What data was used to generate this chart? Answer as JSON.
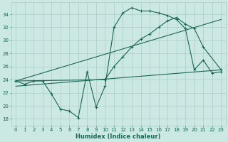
{
  "xlabel": "Humidex (Indice chaleur)",
  "background_color": "#cce8e2",
  "grid_color": "#aacccc",
  "line_color": "#1a6655",
  "xlim": [
    -0.5,
    23.5
  ],
  "ylim": [
    17.0,
    35.8
  ],
  "yticks": [
    18,
    20,
    22,
    24,
    26,
    28,
    30,
    32,
    34
  ],
  "xticks": [
    0,
    1,
    2,
    3,
    4,
    5,
    6,
    7,
    8,
    9,
    10,
    11,
    12,
    13,
    14,
    15,
    16,
    17,
    18,
    19,
    20,
    21,
    22,
    23
  ],
  "line1_x": [
    0,
    1,
    2,
    3,
    4,
    5,
    6,
    7,
    8,
    9,
    10,
    11,
    12,
    13,
    14,
    15,
    16,
    17,
    18,
    19,
    20,
    21,
    22,
    23
  ],
  "line1_y": [
    23.8,
    23.3,
    23.8,
    23.8,
    21.8,
    19.5,
    19.2,
    18.2,
    25.2,
    19.8,
    23.0,
    32.0,
    34.2,
    35.0,
    34.5,
    34.5,
    34.2,
    33.8,
    33.2,
    31.8,
    25.5,
    27.0,
    25.0,
    25.2
  ],
  "line2_x": [
    0,
    10,
    11,
    12,
    13,
    14,
    15,
    16,
    17,
    18,
    19,
    20,
    21,
    23
  ],
  "line2_y": [
    23.8,
    24.0,
    26.0,
    27.5,
    29.0,
    30.2,
    31.0,
    32.0,
    33.0,
    33.5,
    32.5,
    31.8,
    29.0,
    25.5
  ],
  "line3_x": [
    0,
    23
  ],
  "line3_y": [
    23.8,
    33.2
  ],
  "line4_x": [
    0,
    23
  ],
  "line4_y": [
    23.0,
    25.5
  ]
}
